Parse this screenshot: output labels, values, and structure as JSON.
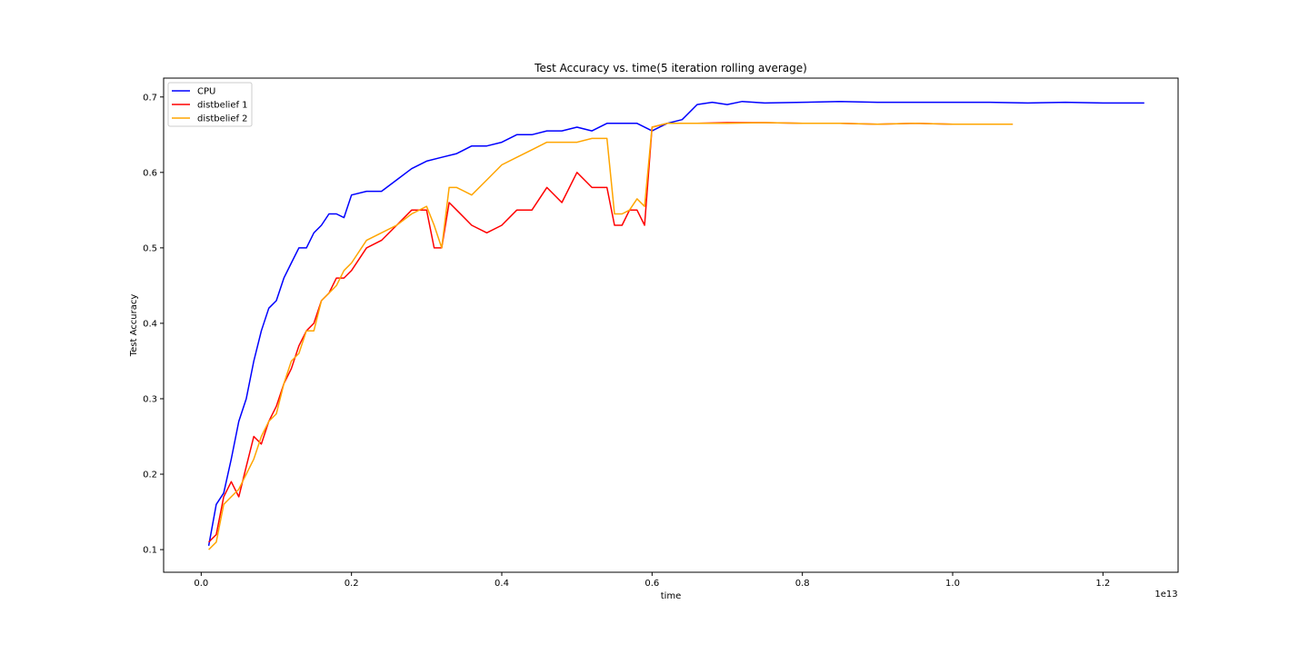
{
  "chart_data": {
    "type": "line",
    "title": "Test Accuracy vs. time(5 iteration rolling average)",
    "xlabel": "time",
    "ylabel": "Test Accuracy",
    "x_offset_text": "1e13",
    "xlim": [
      -0.05,
      1.3
    ],
    "ylim": [
      0.07,
      0.725
    ],
    "xticks": [
      0.0,
      0.2,
      0.4,
      0.6,
      0.8,
      1.0,
      1.2
    ],
    "xtick_labels": [
      "0.0",
      "0.2",
      "0.4",
      "0.6",
      "0.8",
      "1.0",
      "1.2"
    ],
    "yticks": [
      0.1,
      0.2,
      0.3,
      0.4,
      0.5,
      0.6,
      0.7
    ],
    "ytick_labels": [
      "0.1",
      "0.2",
      "0.3",
      "0.4",
      "0.5",
      "0.6",
      "0.7"
    ],
    "legend_position": "top-left",
    "grid": false,
    "series": [
      {
        "name": "CPU",
        "color": "#0000ff",
        "x": [
          0.01,
          0.02,
          0.03,
          0.04,
          0.05,
          0.06,
          0.07,
          0.08,
          0.09,
          0.1,
          0.11,
          0.12,
          0.13,
          0.14,
          0.15,
          0.16,
          0.17,
          0.18,
          0.19,
          0.2,
          0.22,
          0.24,
          0.26,
          0.28,
          0.3,
          0.32,
          0.34,
          0.36,
          0.38,
          0.4,
          0.42,
          0.44,
          0.46,
          0.48,
          0.5,
          0.52,
          0.54,
          0.56,
          0.58,
          0.6,
          0.62,
          0.64,
          0.66,
          0.68,
          0.7,
          0.72,
          0.75,
          0.8,
          0.85,
          0.9,
          0.95,
          1.0,
          1.05,
          1.1,
          1.15,
          1.2,
          1.255
        ],
        "y": [
          0.105,
          0.16,
          0.175,
          0.22,
          0.27,
          0.3,
          0.35,
          0.39,
          0.42,
          0.43,
          0.46,
          0.48,
          0.5,
          0.5,
          0.52,
          0.53,
          0.545,
          0.545,
          0.54,
          0.57,
          0.575,
          0.575,
          0.59,
          0.605,
          0.615,
          0.62,
          0.625,
          0.635,
          0.635,
          0.64,
          0.65,
          0.65,
          0.655,
          0.655,
          0.66,
          0.655,
          0.665,
          0.665,
          0.665,
          0.655,
          0.665,
          0.67,
          0.69,
          0.693,
          0.69,
          0.694,
          0.692,
          0.693,
          0.694,
          0.693,
          0.693,
          0.693,
          0.693,
          0.692,
          0.693,
          0.692,
          0.692
        ]
      },
      {
        "name": "distbelief 1",
        "color": "#ff0000",
        "x": [
          0.01,
          0.02,
          0.03,
          0.04,
          0.05,
          0.06,
          0.07,
          0.08,
          0.09,
          0.1,
          0.11,
          0.12,
          0.13,
          0.14,
          0.15,
          0.16,
          0.17,
          0.18,
          0.19,
          0.2,
          0.22,
          0.24,
          0.26,
          0.28,
          0.3,
          0.31,
          0.32,
          0.33,
          0.34,
          0.36,
          0.38,
          0.4,
          0.42,
          0.44,
          0.46,
          0.48,
          0.5,
          0.52,
          0.54,
          0.55,
          0.56,
          0.57,
          0.58,
          0.59,
          0.6,
          0.62,
          0.64,
          0.66,
          0.7,
          0.75,
          0.8,
          0.85,
          0.9,
          0.95,
          1.0,
          1.05,
          1.08
        ],
        "y": [
          0.11,
          0.12,
          0.17,
          0.19,
          0.17,
          0.21,
          0.25,
          0.24,
          0.27,
          0.29,
          0.32,
          0.34,
          0.37,
          0.39,
          0.4,
          0.43,
          0.44,
          0.46,
          0.46,
          0.47,
          0.5,
          0.51,
          0.53,
          0.55,
          0.55,
          0.5,
          0.5,
          0.56,
          0.55,
          0.53,
          0.52,
          0.53,
          0.55,
          0.55,
          0.58,
          0.56,
          0.6,
          0.58,
          0.58,
          0.53,
          0.53,
          0.55,
          0.55,
          0.53,
          0.66,
          0.665,
          0.665,
          0.665,
          0.666,
          0.666,
          0.665,
          0.665,
          0.664,
          0.665,
          0.664,
          0.664,
          0.664
        ]
      },
      {
        "name": "distbelief 2",
        "color": "#ffa500",
        "x": [
          0.01,
          0.02,
          0.03,
          0.04,
          0.05,
          0.06,
          0.07,
          0.08,
          0.09,
          0.1,
          0.11,
          0.12,
          0.13,
          0.14,
          0.15,
          0.16,
          0.17,
          0.18,
          0.19,
          0.2,
          0.22,
          0.24,
          0.26,
          0.28,
          0.3,
          0.31,
          0.32,
          0.33,
          0.34,
          0.36,
          0.38,
          0.4,
          0.42,
          0.44,
          0.46,
          0.48,
          0.5,
          0.52,
          0.53,
          0.54,
          0.55,
          0.56,
          0.57,
          0.58,
          0.59,
          0.6,
          0.62,
          0.64,
          0.66,
          0.7,
          0.75,
          0.8,
          0.85,
          0.9,
          0.95,
          1.0,
          1.05,
          1.08
        ],
        "y": [
          0.1,
          0.11,
          0.16,
          0.17,
          0.18,
          0.2,
          0.22,
          0.25,
          0.27,
          0.28,
          0.32,
          0.35,
          0.36,
          0.39,
          0.39,
          0.43,
          0.44,
          0.45,
          0.47,
          0.48,
          0.51,
          0.52,
          0.53,
          0.545,
          0.555,
          0.53,
          0.5,
          0.58,
          0.58,
          0.57,
          0.59,
          0.61,
          0.62,
          0.63,
          0.64,
          0.64,
          0.64,
          0.645,
          0.645,
          0.645,
          0.545,
          0.545,
          0.55,
          0.565,
          0.555,
          0.66,
          0.665,
          0.665,
          0.665,
          0.665,
          0.666,
          0.665,
          0.665,
          0.664,
          0.665,
          0.664,
          0.664,
          0.664
        ]
      }
    ]
  }
}
